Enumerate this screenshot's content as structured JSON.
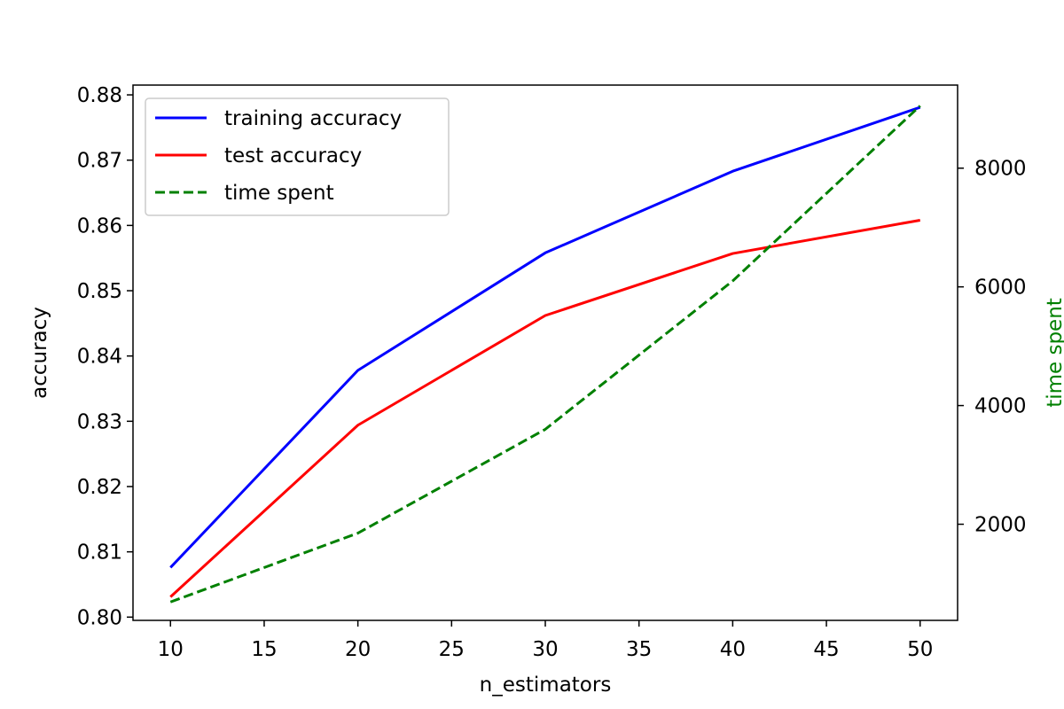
{
  "chart_data": {
    "type": "line",
    "title": "",
    "xlabel": "n_estimators",
    "ylabel": "accuracy",
    "y2label": "time spent",
    "x": [
      10,
      20,
      30,
      40,
      50
    ],
    "xlim": [
      8,
      52
    ],
    "ylim": [
      0.7995,
      0.8815
    ],
    "y2lim": [
      380,
      9400
    ],
    "x_ticks": [
      10,
      15,
      20,
      25,
      30,
      35,
      40,
      45,
      50
    ],
    "y_ticks": [
      "0.80",
      "0.81",
      "0.82",
      "0.83",
      "0.84",
      "0.85",
      "0.86",
      "0.87",
      "0.88"
    ],
    "y2_ticks": [
      "2000",
      "4000",
      "6000",
      "8000"
    ],
    "grid": false,
    "legend_position": "top-left",
    "y2_color": "#008000",
    "series": [
      {
        "name": "training accuracy",
        "axis": "left",
        "color": "#0000ff",
        "style": "solid",
        "values": [
          0.8076,
          0.8378,
          0.8558,
          0.8683,
          0.8781
        ]
      },
      {
        "name": "test accuracy",
        "axis": "left",
        "color": "#ff0000",
        "style": "solid",
        "values": [
          0.8031,
          0.8294,
          0.8462,
          0.8557,
          0.8608
        ]
      },
      {
        "name": "time spent",
        "axis": "right",
        "color": "#008000",
        "style": "dashed",
        "values": [
          690,
          1850,
          3600,
          6100,
          9050
        ]
      }
    ]
  }
}
